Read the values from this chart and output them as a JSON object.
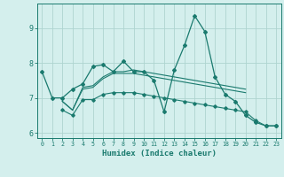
{
  "x": [
    0,
    1,
    2,
    3,
    4,
    5,
    6,
    7,
    8,
    9,
    10,
    11,
    12,
    13,
    14,
    15,
    16,
    17,
    18,
    19,
    20,
    21,
    22,
    23
  ],
  "line1": [
    7.75,
    7.0,
    7.0,
    7.25,
    7.4,
    7.9,
    7.95,
    7.75,
    8.05,
    7.75,
    7.75,
    7.5,
    6.6,
    7.8,
    8.5,
    9.35,
    8.9,
    7.6,
    7.1,
    6.9,
    6.5,
    6.3,
    6.2,
    6.2
  ],
  "line2": [
    null,
    null,
    6.9,
    6.65,
    7.3,
    7.35,
    7.6,
    7.75,
    7.75,
    7.8,
    7.75,
    7.7,
    7.65,
    7.6,
    7.55,
    7.5,
    7.45,
    7.4,
    7.35,
    7.3,
    7.25,
    null,
    null,
    null
  ],
  "line3": [
    null,
    null,
    6.9,
    6.65,
    7.25,
    7.3,
    7.55,
    7.7,
    7.7,
    7.7,
    7.65,
    7.6,
    7.55,
    7.5,
    7.45,
    7.4,
    7.35,
    7.3,
    7.25,
    7.2,
    7.15,
    null,
    null,
    null
  ],
  "line4": [
    null,
    null,
    6.65,
    6.5,
    6.95,
    6.95,
    7.1,
    7.15,
    7.15,
    7.15,
    7.1,
    7.05,
    7.0,
    6.95,
    6.9,
    6.85,
    6.8,
    6.75,
    6.7,
    6.65,
    6.6,
    6.35,
    6.2,
    6.2
  ],
  "color": "#1a7a6e",
  "bg_color": "#d4efed",
  "grid_color": "#aed4d0",
  "xlabel": "Humidex (Indice chaleur)",
  "xlim": [
    -0.5,
    23.5
  ],
  "ylim": [
    5.85,
    9.7
  ],
  "yticks": [
    6,
    7,
    8,
    9
  ],
  "xticks": [
    0,
    1,
    2,
    3,
    4,
    5,
    6,
    7,
    8,
    9,
    10,
    11,
    12,
    13,
    14,
    15,
    16,
    17,
    18,
    19,
    20,
    21,
    22,
    23
  ]
}
